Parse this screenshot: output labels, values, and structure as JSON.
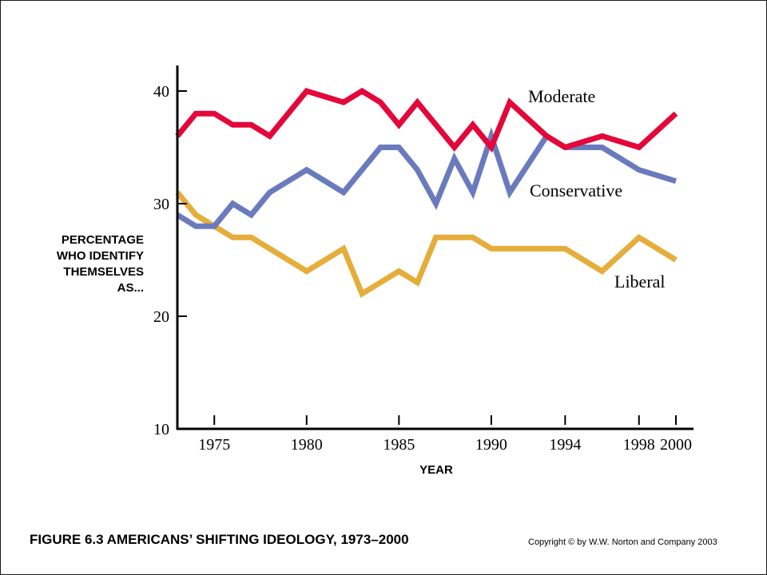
{
  "caption": "FIGURE 6.3  AMERICANS’ SHIFTING IDEOLOGY, 1973–2000",
  "copyright": "Copyright © by W.W. Norton and Company 2003",
  "chart_data": {
    "type": "line",
    "title": "",
    "xlabel": "YEAR",
    "ylabel_lines": [
      "PERCENTAGE",
      "WHO IDENTIFY",
      "THEMSELVES",
      "AS..."
    ],
    "xlim": [
      1973,
      2000
    ],
    "ylim": [
      10,
      42
    ],
    "x_ticks": [
      1975,
      1980,
      1985,
      1990,
      1994,
      1998,
      2000
    ],
    "y_ticks": [
      10,
      20,
      30,
      40
    ],
    "grid": false,
    "legend": "inline labels",
    "x": [
      1973,
      1974,
      1975,
      1976,
      1977,
      1978,
      1980,
      1982,
      1983,
      1984,
      1985,
      1986,
      1987,
      1988,
      1989,
      1990,
      1991,
      1993,
      1994,
      1996,
      1998,
      2000
    ],
    "series": [
      {
        "name": "Moderate",
        "color": "#e4073a",
        "values": [
          36,
          38,
          38,
          37,
          37,
          36,
          40,
          39,
          40,
          39,
          37,
          39,
          37,
          35,
          37,
          35,
          39,
          36,
          35,
          36,
          35,
          38
        ]
      },
      {
        "name": "Conservative",
        "color": "#6a7bbd",
        "values": [
          29,
          28,
          28,
          30,
          29,
          31,
          33,
          31,
          33,
          35,
          35,
          33,
          30,
          34,
          31,
          36,
          31,
          36,
          35,
          35,
          33,
          32
        ]
      },
      {
        "name": "Liberal",
        "color": "#e5ad3a",
        "values": [
          31,
          29,
          28,
          27,
          27,
          26,
          24,
          26,
          22,
          23,
          24,
          23,
          27,
          27,
          27,
          26,
          26,
          26,
          26,
          24,
          27,
          25
        ]
      }
    ]
  }
}
